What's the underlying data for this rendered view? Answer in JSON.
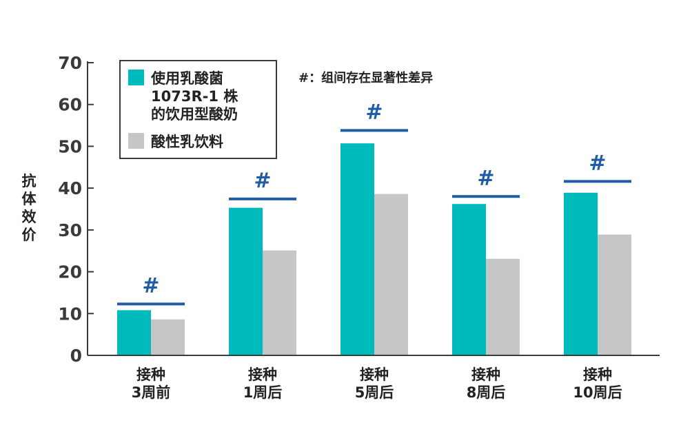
{
  "chart_data": {
    "type": "bar",
    "ylabel": "抗体效价",
    "ylim": [
      0,
      70
    ],
    "yticks": [
      0,
      10,
      20,
      30,
      40,
      50,
      60,
      70
    ],
    "categories": [
      [
        "接种",
        "3周前"
      ],
      [
        "接种",
        "1周后"
      ],
      [
        "接种",
        "5周后"
      ],
      [
        "接种",
        "8周后"
      ],
      [
        "接种",
        "10周后"
      ]
    ],
    "series": [
      {
        "name_lines": [
          "使用乳酸菌",
          "1073R-1 株",
          "的饮用型酸奶"
        ],
        "color": "#00bbbb",
        "values": [
          10.8,
          35.3,
          50.7,
          36.2,
          38.9
        ]
      },
      {
        "name_lines": [
          "酸性乳饮料"
        ],
        "color": "#c6c6c6",
        "values": [
          8.6,
          25.1,
          38.6,
          23.1,
          28.9
        ]
      }
    ],
    "significance": {
      "symbol": "#",
      "color": "#1f5ca6",
      "bar_values": [
        12.3,
        37.4,
        53.8,
        38.0,
        41.6
      ]
    },
    "annotation": "#：组间存在显著性差异",
    "grid": false,
    "legend_position": "top-left"
  }
}
